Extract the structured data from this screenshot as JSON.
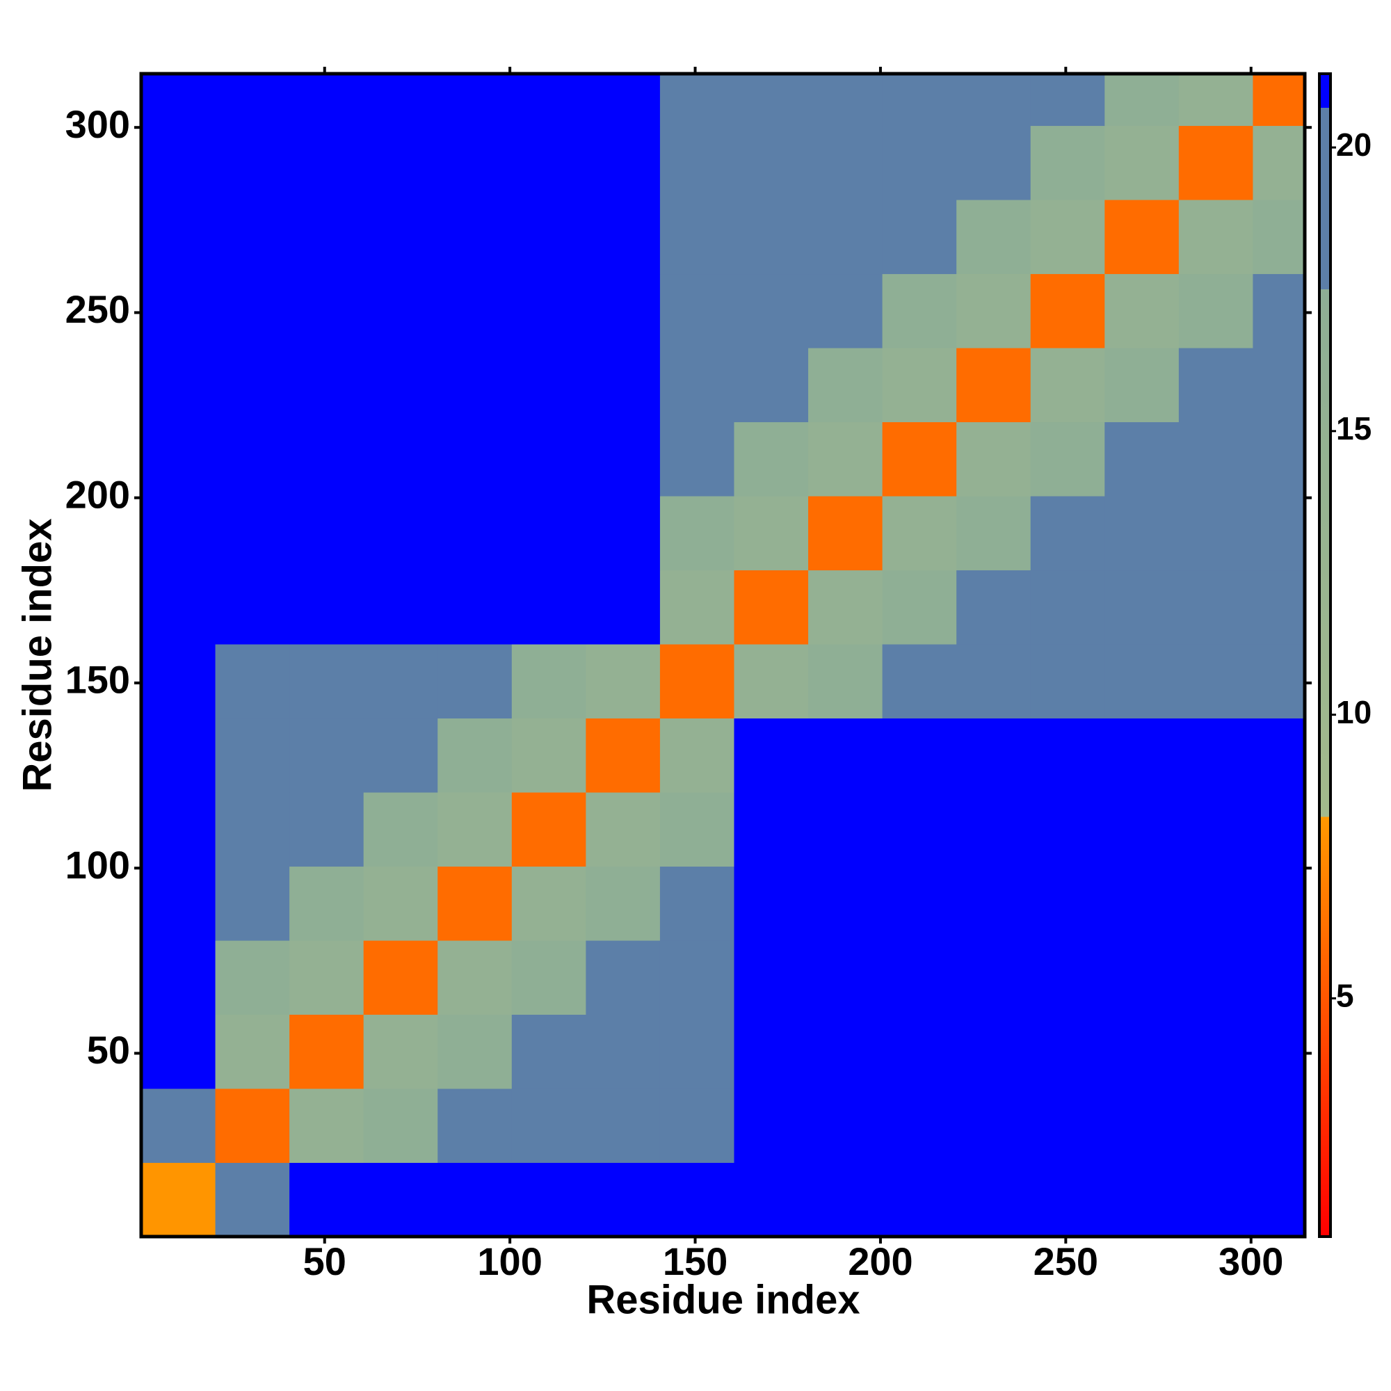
{
  "chart_data": {
    "type": "heatmap",
    "xlabel": "Residue index",
    "ylabel": "Residue index",
    "xlim": [
      0.5,
      314.5
    ],
    "ylim": [
      0.5,
      314.5
    ],
    "xticks": [
      50,
      100,
      150,
      200,
      250,
      300
    ],
    "yticks": [
      50,
      100,
      150,
      200,
      250,
      300
    ],
    "x_bins": [
      0.5,
      20.5,
      40.5,
      60.5,
      80.5,
      100.5,
      120.5,
      140.5,
      160.5,
      180.5,
      200.5,
      220.5,
      240.5,
      260.5,
      280.5,
      300.5,
      314.5
    ],
    "y_bins": [
      0.5,
      20.5,
      40.5,
      60.5,
      80.5,
      100.5,
      120.5,
      140.5,
      160.5,
      180.5,
      200.5,
      220.5,
      240.5,
      260.5,
      280.5,
      300.5,
      314.5
    ],
    "z": [
      [
        8,
        19,
        21,
        21,
        21,
        21,
        21,
        21,
        21,
        21,
        21,
        21,
        21,
        21,
        21,
        21
      ],
      [
        19,
        6,
        15,
        17,
        19,
        19,
        19,
        19,
        21,
        21,
        21,
        21,
        21,
        21,
        21,
        21
      ],
      [
        21,
        15,
        6,
        15,
        17,
        19,
        19,
        19,
        21,
        21,
        21,
        21,
        21,
        21,
        21,
        21
      ],
      [
        21,
        17,
        15,
        6,
        15,
        17,
        19,
        19,
        21,
        21,
        21,
        21,
        21,
        21,
        21,
        21
      ],
      [
        21,
        19,
        17,
        15,
        6,
        15,
        17,
        19,
        21,
        21,
        21,
        21,
        21,
        21,
        21,
        21
      ],
      [
        21,
        19,
        19,
        17,
        15,
        6,
        15,
        17,
        21,
        21,
        21,
        21,
        21,
        21,
        21,
        21
      ],
      [
        21,
        19,
        19,
        19,
        17,
        15,
        6,
        15,
        21,
        21,
        21,
        21,
        21,
        21,
        21,
        21
      ],
      [
        21,
        19,
        19,
        19,
        19,
        17,
        15,
        6,
        15,
        17,
        19,
        19,
        19,
        19,
        19,
        19
      ],
      [
        21,
        21,
        21,
        21,
        21,
        21,
        21,
        15,
        6,
        15,
        17,
        19,
        19,
        19,
        19,
        19
      ],
      [
        21,
        21,
        21,
        21,
        21,
        21,
        21,
        17,
        15,
        6,
        15,
        17,
        19,
        19,
        19,
        19
      ],
      [
        21,
        21,
        21,
        21,
        21,
        21,
        21,
        19,
        17,
        15,
        6,
        15,
        17,
        19,
        19,
        19
      ],
      [
        21,
        21,
        21,
        21,
        21,
        21,
        21,
        19,
        19,
        17,
        15,
        6,
        15,
        17,
        19,
        19
      ],
      [
        21,
        21,
        21,
        21,
        21,
        21,
        21,
        19,
        19,
        19,
        17,
        15,
        6,
        15,
        17,
        19
      ],
      [
        21,
        21,
        21,
        21,
        21,
        21,
        21,
        19,
        19,
        19,
        19,
        17,
        15,
        6,
        15,
        17
      ],
      [
        21,
        21,
        21,
        21,
        21,
        21,
        21,
        19,
        19,
        19,
        19,
        19,
        17,
        15,
        6,
        15
      ],
      [
        21,
        21,
        21,
        21,
        21,
        21,
        21,
        19,
        19,
        19,
        19,
        19,
        19,
        17,
        15,
        6
      ]
    ],
    "clim": [
      0.8,
      21.3
    ],
    "cticks": [
      5,
      10,
      15,
      20
    ],
    "colorscale": [
      {
        "value": 0.8,
        "color": "#ff0000"
      },
      {
        "value": 8.2,
        "color": "#ff9900"
      },
      {
        "value": 8.2,
        "color": "#a3ba8c"
      },
      {
        "value": 17.5,
        "color": "#8eae95"
      },
      {
        "value": 17.5,
        "color": "#5c7fa8"
      },
      {
        "value": 20.7,
        "color": "#5c7fa8"
      },
      {
        "value": 20.7,
        "color": "#0000ff"
      },
      {
        "value": 21.3,
        "color": "#0000ff"
      }
    ]
  }
}
